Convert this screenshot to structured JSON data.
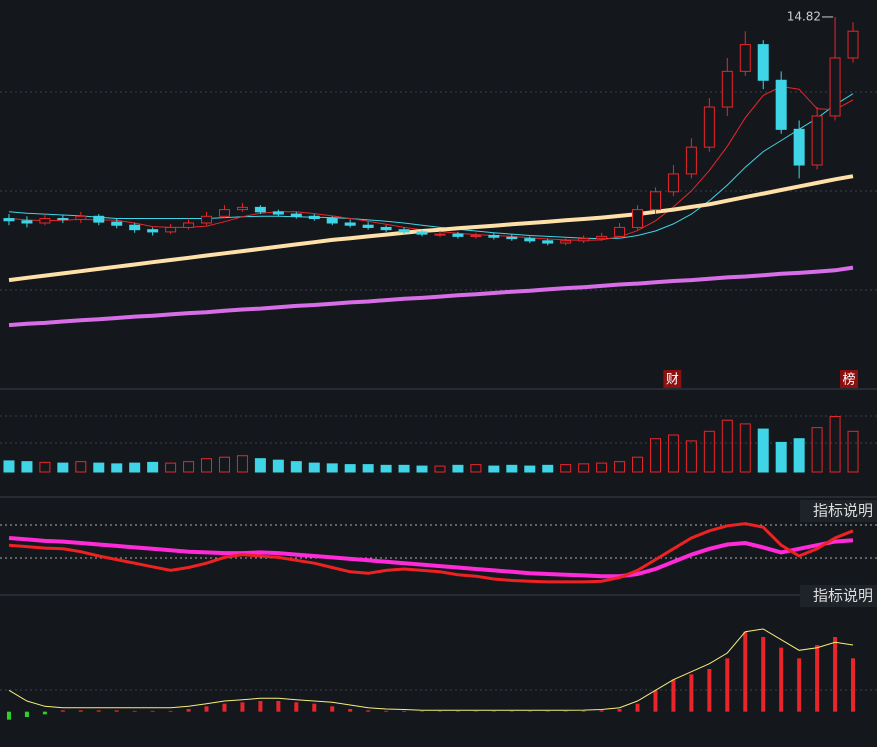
{
  "chart_data": [
    {
      "type": "candlestick",
      "high_label": 14.82,
      "up_color": "#e8262a",
      "down_color": "#3fd5e6",
      "ylim": [
        6.5,
        15.2
      ],
      "open": [
        10.3,
        10.25,
        10.2,
        10.3,
        10.28,
        10.35,
        10.22,
        10.15,
        10.05,
        10.0,
        10.1,
        10.2,
        10.35,
        10.5,
        10.55,
        10.45,
        10.4,
        10.35,
        10.3,
        10.2,
        10.15,
        10.1,
        10.05,
        10.0,
        9.95,
        9.95,
        9.9,
        9.92,
        9.88,
        9.85,
        9.8,
        9.75,
        9.8,
        9.85,
        9.9,
        10.1,
        10.5,
        10.9,
        11.3,
        11.9,
        12.8,
        13.6,
        14.2,
        13.4,
        12.3,
        11.5,
        12.6,
        13.9
      ],
      "high": [
        10.4,
        10.35,
        10.4,
        10.38,
        10.45,
        10.4,
        10.3,
        10.2,
        10.1,
        10.18,
        10.3,
        10.45,
        10.6,
        10.65,
        10.6,
        10.5,
        10.45,
        10.4,
        10.35,
        10.28,
        10.22,
        10.15,
        10.1,
        10.05,
        10.02,
        10.0,
        9.98,
        9.98,
        9.95,
        9.9,
        9.85,
        9.88,
        9.92,
        9.98,
        10.2,
        10.6,
        11.0,
        11.5,
        12.1,
        13.0,
        13.9,
        14.5,
        14.3,
        13.6,
        12.5,
        12.8,
        14.82,
        14.7
      ],
      "low": [
        10.15,
        10.1,
        10.15,
        10.2,
        10.2,
        10.15,
        10.08,
        9.98,
        9.92,
        9.95,
        10.05,
        10.15,
        10.3,
        10.45,
        10.4,
        10.35,
        10.3,
        10.25,
        10.15,
        10.1,
        10.05,
        10.0,
        9.95,
        9.9,
        9.88,
        9.85,
        9.85,
        9.83,
        9.8,
        9.75,
        9.7,
        9.7,
        9.75,
        9.8,
        9.85,
        10.05,
        10.4,
        10.8,
        11.2,
        11.8,
        12.6,
        13.5,
        13.2,
        12.2,
        11.2,
        11.4,
        12.5,
        13.8
      ],
      "close": [
        10.25,
        10.2,
        10.3,
        10.28,
        10.35,
        10.22,
        10.15,
        10.05,
        10.0,
        10.1,
        10.2,
        10.35,
        10.5,
        10.55,
        10.45,
        10.4,
        10.35,
        10.3,
        10.2,
        10.15,
        10.1,
        10.05,
        10.0,
        9.95,
        9.95,
        9.9,
        9.92,
        9.88,
        9.85,
        9.8,
        9.75,
        9.8,
        9.85,
        9.9,
        10.1,
        10.5,
        10.9,
        11.3,
        11.9,
        12.8,
        13.6,
        14.2,
        13.4,
        12.3,
        11.5,
        12.6,
        13.9,
        14.5
      ],
      "series": [
        {
          "color": "#3fd5e6",
          "width": 1,
          "values": [
            10.45,
            10.42,
            10.4,
            10.38,
            10.36,
            10.33,
            10.3,
            10.3,
            10.3,
            10.3,
            10.3,
            10.3,
            10.32,
            10.34,
            10.35,
            10.35,
            10.34,
            10.33,
            10.32,
            10.3,
            10.27,
            10.24,
            10.2,
            10.15,
            10.1,
            10.06,
            10.02,
            9.98,
            9.95,
            9.92,
            9.9,
            9.88,
            9.86,
            9.85,
            9.86,
            9.92,
            10.02,
            10.18,
            10.4,
            10.7,
            11.05,
            11.45,
            11.8,
            12.05,
            12.3,
            12.55,
            12.85,
            13.1
          ]
        },
        {
          "color": "#e8262a",
          "width": 1,
          "values": [
            10.3,
            10.27,
            10.25,
            10.26,
            10.28,
            10.27,
            10.26,
            10.2,
            10.12,
            10.1,
            10.1,
            10.13,
            10.23,
            10.34,
            10.42,
            10.45,
            10.45,
            10.41,
            10.36,
            10.3,
            10.24,
            10.17,
            10.1,
            10.05,
            10.01,
            9.97,
            9.94,
            9.92,
            9.9,
            9.87,
            9.84,
            9.82,
            9.81,
            9.82,
            9.89,
            10.03,
            10.25,
            10.56,
            10.92,
            11.38,
            11.92,
            12.56,
            13.06,
            13.26,
            13.2,
            12.76,
            12.74,
            12.96
          ]
        },
        {
          "color": "#ffe0a8",
          "width": 4,
          "values": [
            8.92,
            8.97,
            9.02,
            9.07,
            9.12,
            9.17,
            9.22,
            9.27,
            9.32,
            9.37,
            9.42,
            9.47,
            9.52,
            9.57,
            9.62,
            9.67,
            9.72,
            9.77,
            9.82,
            9.86,
            9.9,
            9.94,
            9.98,
            10.02,
            10.05,
            10.08,
            10.11,
            10.14,
            10.17,
            10.2,
            10.23,
            10.26,
            10.29,
            10.32,
            10.36,
            10.4,
            10.45,
            10.5,
            10.56,
            10.62,
            10.7,
            10.78,
            10.86,
            10.94,
            11.02,
            11.1,
            11.18,
            11.25
          ]
        },
        {
          "color": "#d76ee8",
          "width": 4,
          "values": [
            7.91,
            7.94,
            7.96,
            7.99,
            8.02,
            8.04,
            8.07,
            8.1,
            8.12,
            8.15,
            8.18,
            8.2,
            8.23,
            8.26,
            8.28,
            8.31,
            8.34,
            8.36,
            8.39,
            8.42,
            8.44,
            8.47,
            8.5,
            8.52,
            8.55,
            8.58,
            8.6,
            8.63,
            8.66,
            8.68,
            8.71,
            8.74,
            8.76,
            8.79,
            8.82,
            8.84,
            8.87,
            8.9,
            8.92,
            8.95,
            8.98,
            9.0,
            9.03,
            9.06,
            9.08,
            9.11,
            9.14,
            9.2
          ]
        }
      ],
      "annotations": [
        "财",
        "榜"
      ]
    },
    {
      "type": "volume",
      "ylim": [
        0,
        100
      ],
      "values": [
        15,
        14,
        13,
        12,
        14,
        12,
        11,
        12,
        13,
        12,
        14,
        18,
        20,
        22,
        18,
        16,
        14,
        12,
        11,
        10,
        10,
        9,
        9,
        8,
        8,
        9,
        10,
        8,
        9,
        8,
        9,
        10,
        11,
        12,
        14,
        20,
        45,
        50,
        42,
        55,
        70,
        65,
        58,
        40,
        45,
        60,
        75,
        55
      ]
    },
    {
      "type": "line",
      "title": "指标说明",
      "ylim": [
        0,
        100
      ],
      "series": [
        {
          "color": "#ff2ad8",
          "width": 4,
          "values": [
            75,
            73,
            71,
            70,
            68,
            66,
            64,
            62,
            60,
            58,
            56,
            55,
            54,
            54,
            55,
            54,
            52,
            50,
            48,
            46,
            44,
            42,
            40,
            38,
            36,
            34,
            32,
            30,
            28,
            26,
            25,
            24,
            23,
            22,
            22,
            25,
            32,
            42,
            52,
            60,
            66,
            68,
            62,
            55,
            60,
            65,
            70,
            72
          ]
        },
        {
          "color": "#ee2222",
          "width": 3,
          "values": [
            65,
            63,
            61,
            60,
            56,
            50,
            45,
            40,
            35,
            30,
            34,
            40,
            48,
            52,
            50,
            48,
            44,
            40,
            34,
            28,
            26,
            30,
            32,
            30,
            28,
            24,
            22,
            18,
            16,
            15,
            14,
            14,
            14,
            15,
            20,
            30,
            45,
            60,
            75,
            85,
            92,
            95,
            90,
            65,
            50,
            60,
            75,
            85
          ]
        }
      ]
    },
    {
      "type": "macd",
      "title": "指标说明",
      "ylim": [
        -5,
        40
      ],
      "bar_up_color": "#e8262a",
      "bar_down_color": "#2ad22a",
      "values": [
        -3,
        -2,
        -1,
        0.5,
        0.5,
        0.5,
        0.5,
        0.3,
        0.3,
        0.3,
        1,
        2,
        3,
        3.5,
        4,
        4,
        3.5,
        3,
        2,
        1,
        0.5,
        0.3,
        0.3,
        0.2,
        0.2,
        0.2,
        0.2,
        0.2,
        0.2,
        0.2,
        0.2,
        0.2,
        0.3,
        0.5,
        1,
        3,
        8,
        12,
        14,
        16,
        20,
        30,
        28,
        24,
        20,
        25,
        28,
        20
      ],
      "series": [
        {
          "color": "#f5f07a",
          "width": 1,
          "values": [
            8,
            4,
            2,
            1.5,
            1.5,
            1.5,
            1.5,
            1.5,
            1.5,
            1.5,
            2,
            3,
            4,
            4.5,
            5,
            5,
            4.5,
            4,
            3.5,
            2.5,
            1.5,
            1,
            0.8,
            0.5,
            0.5,
            0.5,
            0.5,
            0.5,
            0.5,
            0.5,
            0.5,
            0.5,
            0.6,
            0.8,
            1.5,
            4,
            8,
            12,
            15,
            18,
            22,
            30,
            31,
            27,
            23,
            24,
            26,
            25
          ]
        }
      ]
    }
  ]
}
